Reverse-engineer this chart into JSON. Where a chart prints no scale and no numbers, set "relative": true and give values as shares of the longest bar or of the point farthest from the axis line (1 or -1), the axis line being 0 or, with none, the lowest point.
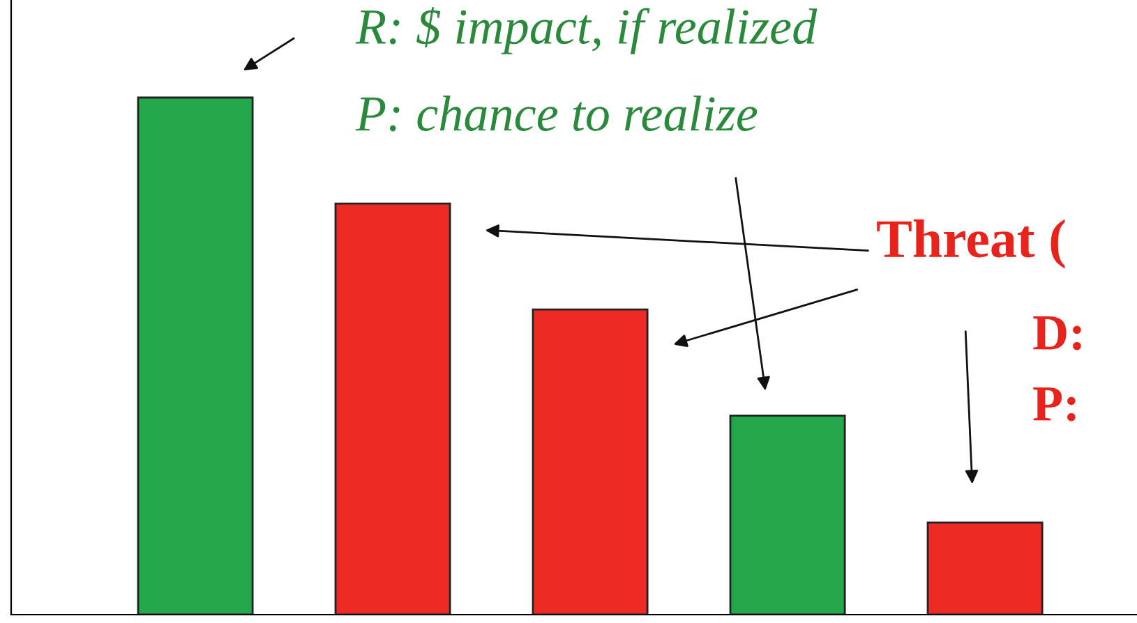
{
  "chart_data": {
    "type": "bar",
    "relative": true,
    "categories": [
      null,
      null,
      null,
      null,
      null
    ],
    "values": [
      1,
      0.795,
      0.59,
      0.385,
      0.178
    ],
    "colors": [
      "#22a84a",
      "#ee2a24",
      "#ee2a24",
      "#22a84a",
      "#ee2a24"
    ],
    "annotations": [
      "R: $ impact, if realized",
      "P: chance to realize",
      "Threat (",
      "D:",
      "P:"
    ],
    "grid": false,
    "legend": false
  }
}
